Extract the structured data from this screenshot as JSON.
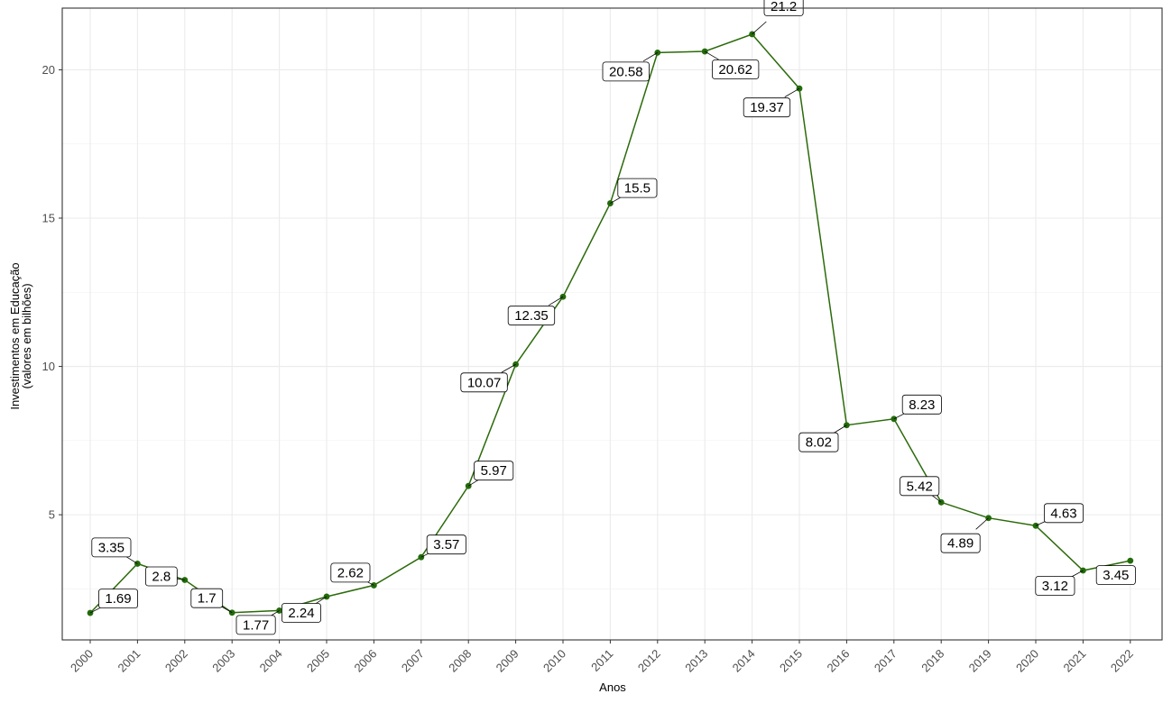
{
  "chart_data": {
    "type": "line",
    "xlabel": "Anos",
    "ylabel_lines": [
      "Investimentos em Educação",
      "(valores em bilhões)"
    ],
    "categories": [
      "2000",
      "2001",
      "2002",
      "2003",
      "2004",
      "2005",
      "2006",
      "2007",
      "2008",
      "2009",
      "2010",
      "2011",
      "2012",
      "2013",
      "2014",
      "2015",
      "2016",
      "2017",
      "2018",
      "2019",
      "2020",
      "2021",
      "2022"
    ],
    "values": [
      1.69,
      3.35,
      2.8,
      1.7,
      1.77,
      2.24,
      2.62,
      3.57,
      5.97,
      10.07,
      12.35,
      15.5,
      20.58,
      20.62,
      21.2,
      19.37,
      8.02,
      8.23,
      5.42,
      4.89,
      4.63,
      3.12,
      3.45
    ],
    "labels": [
      {
        "x": "2000",
        "text": "1.69"
      },
      {
        "x": "2001",
        "text": "3.35"
      },
      {
        "x": "2002",
        "text": "2.8"
      },
      {
        "x": "2003",
        "text": "1.7"
      },
      {
        "x": "2004",
        "text": "1.77"
      },
      {
        "x": "2005",
        "text": "2.24"
      },
      {
        "x": "2006",
        "text": "2.62"
      },
      {
        "x": "2007",
        "text": "3.57"
      },
      {
        "x": "2008",
        "text": "5.97"
      },
      {
        "x": "2009",
        "text": "10.07"
      },
      {
        "x": "2010",
        "text": "12.35"
      },
      {
        "x": "2011",
        "text": "15.5"
      },
      {
        "x": "2012",
        "text": "20.58"
      },
      {
        "x": "2013",
        "text": "20.62"
      },
      {
        "x": "2014",
        "text": "21.2"
      },
      {
        "x": "2015",
        "text": "19.37"
      },
      {
        "x": "2016",
        "text": "8.02"
      },
      {
        "x": "2017",
        "text": "8.23"
      },
      {
        "x": "2018",
        "text": "5.42"
      },
      {
        "x": "2019",
        "text": "4.89"
      },
      {
        "x": "2020",
        "text": "4.63"
      },
      {
        "x": "2021",
        "text": "3.12"
      },
      {
        "x": "2022",
        "text": "3.45"
      }
    ],
    "yticks": [
      5,
      10,
      15,
      20
    ],
    "ylim": [
      0.78,
      22.08
    ],
    "grid": true,
    "line_color": "#2b6a0a",
    "point_color": "#236b0a"
  }
}
